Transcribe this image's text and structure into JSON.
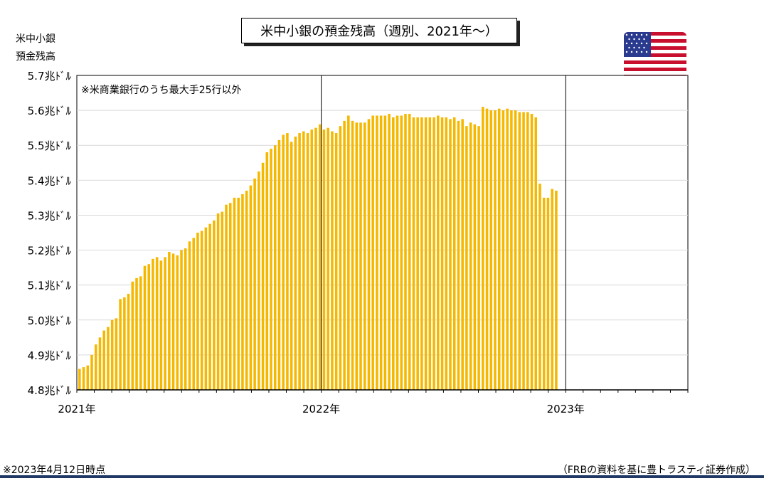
{
  "title": "米中小銀の預金残高（週別、2021年～）",
  "y_axis_label_line1": "米中小銀",
  "y_axis_label_line2": "預金残高",
  "annotation": "※米商業銀行のうち最大手25行以外",
  "footnote_left": "※2023年4月12日時点",
  "footnote_right": "（FRBの資料を基に豊トラスティ証券作成）",
  "colors": {
    "bar": "#f5b800",
    "grid": "#d9d9d9",
    "footer_bar": "#1f3864"
  },
  "chart_data": {
    "type": "bar",
    "title": "米中小銀の預金残高（週別、2021年～）",
    "ylabel": "米中小銀 預金残高",
    "y_unit": "兆ドル",
    "ylim": [
      4.8,
      5.7
    ],
    "y_ticks": [
      4.8,
      4.9,
      5.0,
      5.1,
      5.2,
      5.3,
      5.4,
      5.5,
      5.6,
      5.7
    ],
    "y_tick_labels": [
      "4.8兆ﾄﾞﾙ",
      "4.9兆ﾄﾞﾙ",
      "5.0兆ﾄﾞﾙ",
      "5.1兆ﾄﾞﾙ",
      "5.2兆ﾄﾞﾙ",
      "5.3兆ﾄﾞﾙ",
      "5.4兆ﾄﾞﾙ",
      "5.5兆ﾄﾞﾙ",
      "5.6兆ﾄﾞﾙ",
      "5.7兆ﾄﾞﾙ"
    ],
    "x_labels": [
      "2021年",
      "2022年",
      "2023年"
    ],
    "x_label_weeks": [
      0,
      60,
      120
    ],
    "total_weeks": 150,
    "grid": true,
    "year_divider_weeks": [
      60,
      120
    ],
    "values": [
      4.86,
      4.865,
      4.87,
      4.9,
      4.93,
      4.95,
      4.97,
      4.98,
      5.0,
      5.005,
      5.06,
      5.065,
      5.075,
      5.11,
      5.12,
      5.125,
      5.155,
      5.16,
      5.175,
      5.18,
      5.17,
      5.18,
      5.195,
      5.19,
      5.185,
      5.2,
      5.205,
      5.225,
      5.235,
      5.25,
      5.255,
      5.265,
      5.275,
      5.285,
      5.305,
      5.31,
      5.33,
      5.335,
      5.35,
      5.35,
      5.36,
      5.37,
      5.385,
      5.405,
      5.425,
      5.45,
      5.48,
      5.49,
      5.5,
      5.515,
      5.53,
      5.535,
      5.51,
      5.525,
      5.535,
      5.54,
      5.535,
      5.545,
      5.55,
      5.56,
      5.545,
      5.55,
      5.54,
      5.535,
      5.555,
      5.57,
      5.585,
      5.57,
      5.565,
      5.565,
      5.565,
      5.575,
      5.585,
      5.585,
      5.585,
      5.585,
      5.59,
      5.58,
      5.585,
      5.585,
      5.59,
      5.59,
      5.58,
      5.58,
      5.58,
      5.58,
      5.58,
      5.58,
      5.585,
      5.58,
      5.58,
      5.575,
      5.58,
      5.57,
      5.575,
      5.555,
      5.565,
      5.56,
      5.555,
      5.61,
      5.605,
      5.6,
      5.6,
      5.605,
      5.6,
      5.605,
      5.6,
      5.6,
      5.595,
      5.595,
      5.595,
      5.59,
      5.58,
      5.39,
      5.35,
      5.35,
      5.375,
      5.37
    ]
  }
}
